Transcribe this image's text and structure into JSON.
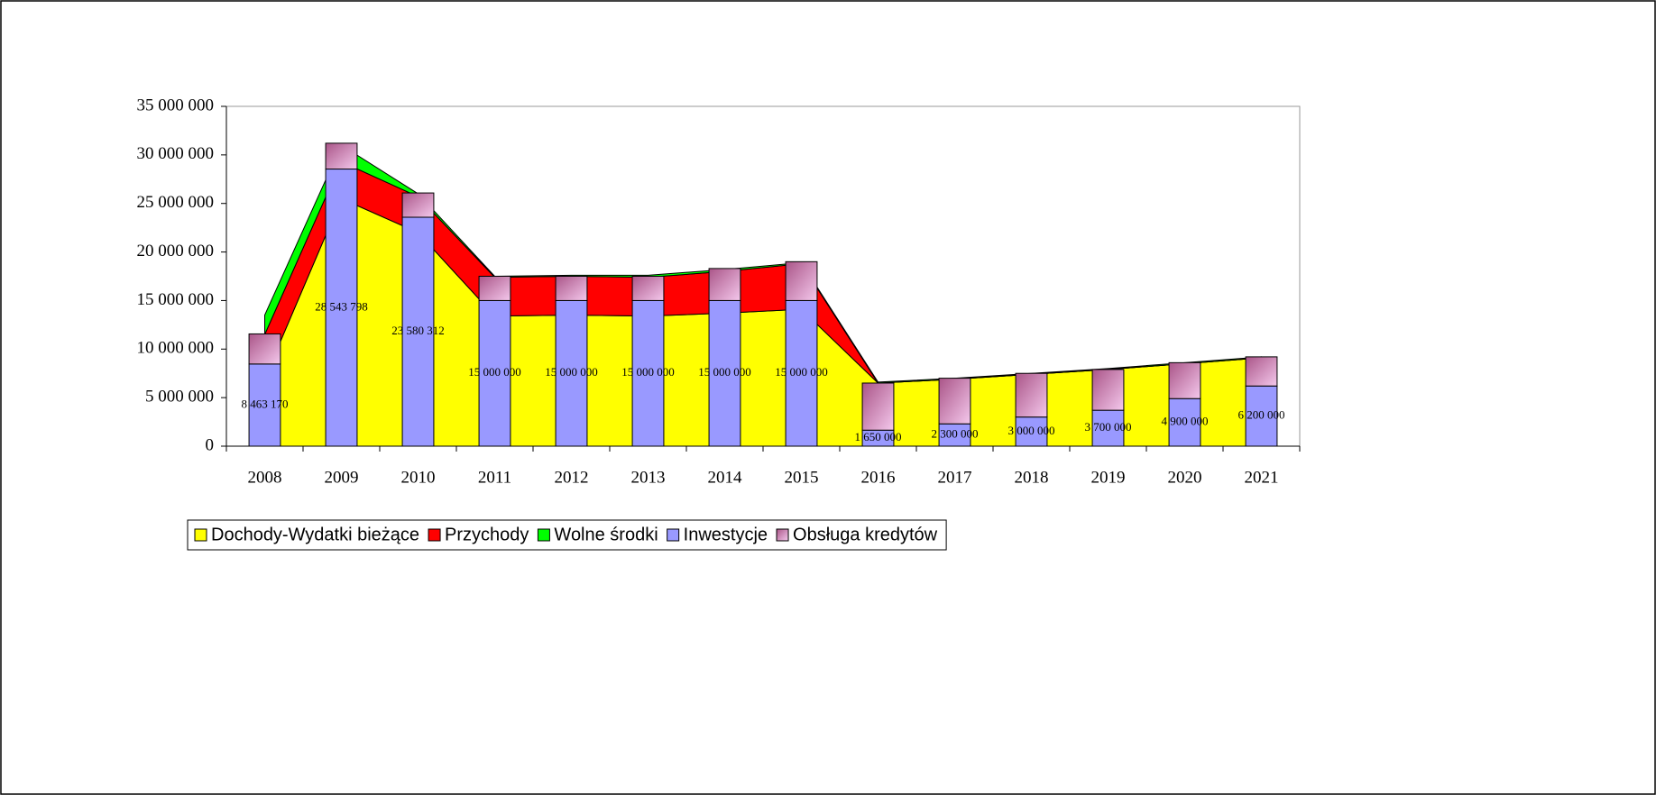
{
  "chart_data": {
    "type": "combo",
    "categories": [
      "2008",
      "2009",
      "2010",
      "2011",
      "2012",
      "2013",
      "2014",
      "2015",
      "2016",
      "2017",
      "2018",
      "2019",
      "2020",
      "2021"
    ],
    "series": [
      {
        "name": "Dochody-Wydatki bieżące",
        "type": "area",
        "color": "#ffff00",
        "values": [
          7000000,
          25500000,
          22000000,
          13400000,
          13500000,
          13400000,
          13700000,
          14100000,
          6500000,
          6900000,
          7400000,
          7900000,
          8500000,
          9100000
        ]
      },
      {
        "name": "Przychody",
        "type": "area",
        "color": "#ff0000",
        "values": [
          4500000,
          3800000,
          3700000,
          4000000,
          4000000,
          4000000,
          4300000,
          4700000,
          0,
          0,
          0,
          0,
          0,
          0
        ]
      },
      {
        "name": "Wolne środki",
        "type": "area",
        "color": "#00ff00",
        "values": [
          2000000,
          1700000,
          300000,
          100000,
          100000,
          200000,
          200000,
          100000,
          100000,
          100000,
          100000,
          100000,
          100000,
          100000
        ]
      },
      {
        "name": "Inwestycje",
        "type": "bar",
        "color": "#9999ff",
        "values": [
          8463170,
          28543798,
          23580312,
          15000000,
          15000000,
          15000000,
          15000000,
          15000000,
          1650000,
          2300000,
          3000000,
          3700000,
          4900000,
          6200000
        ],
        "value_labels": [
          "8 463 170",
          "28 543 798",
          "23 580 312",
          "15 000 000",
          "15 000 000",
          "15 000 000",
          "15 000 000",
          "15 000 000",
          "1 650 000",
          "2 300 000",
          "3 000 000",
          "3 700 000",
          "4 900 000",
          "6 200 000"
        ]
      },
      {
        "name": "Obsługa kredytów",
        "type": "bar",
        "color": "#cc88bb",
        "values": [
          3100000,
          2660000,
          2500000,
          2500000,
          2500000,
          2500000,
          3300000,
          4000000,
          4850000,
          4700000,
          4500000,
          4200000,
          3700000,
          3000000
        ]
      }
    ],
    "ylim": [
      0,
      35000000
    ],
    "yticks": [
      {
        "value": 0,
        "label": "0"
      },
      {
        "value": 5000000,
        "label": "5 000 000"
      },
      {
        "value": 10000000,
        "label": "10 000 000"
      },
      {
        "value": 15000000,
        "label": "15 000 000"
      },
      {
        "value": 20000000,
        "label": "20 000 000"
      },
      {
        "value": 25000000,
        "label": "25 000 000"
      },
      {
        "value": 30000000,
        "label": "30 000 000"
      },
      {
        "value": 35000000,
        "label": "35 000 000"
      }
    ],
    "legend": "bottom"
  }
}
